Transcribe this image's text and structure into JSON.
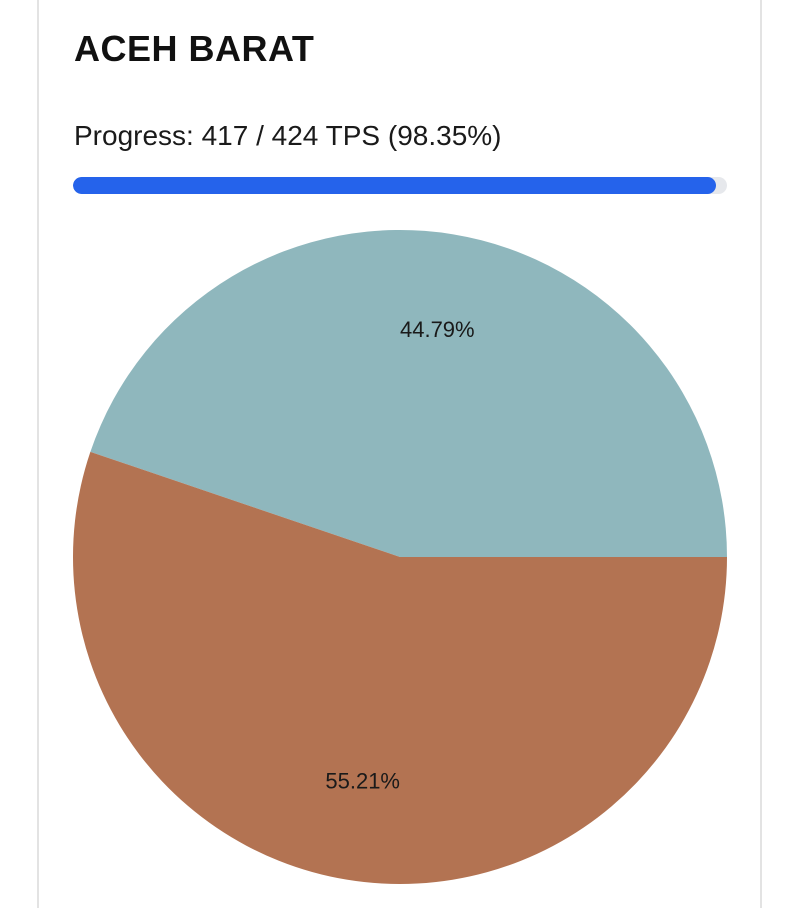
{
  "header": {
    "title": "ACEH BARAT",
    "progress_label": "Progress: 417 / 424 TPS (98.35%)",
    "progress_percent": 98.35
  },
  "colors": {
    "progress_fill": "#2563eb",
    "progress_track": "#e6e8ec"
  },
  "chart_data": {
    "type": "pie",
    "start_angle_deg": 0,
    "direction": "counterclockwise",
    "slices": [
      {
        "label": "44.79%",
        "value": 44.79,
        "color": "#8fb7bd"
      },
      {
        "label": "55.21%",
        "value": 55.21,
        "color": "#b37352"
      }
    ]
  }
}
